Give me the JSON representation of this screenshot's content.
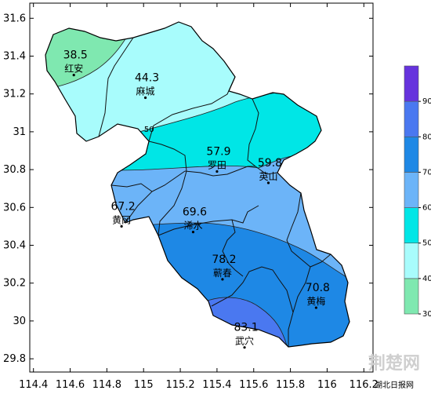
{
  "chart_data": {
    "type": "heatmap",
    "x_ticks": [
      "114.4",
      "114.6",
      "114.8",
      "115",
      "115.2",
      "115.4",
      "115.6",
      "115.8",
      "116",
      "116.2"
    ],
    "y_ticks": [
      "31.6",
      "31.4",
      "31.2",
      "31",
      "30.8",
      "30.6",
      "30.4",
      "30.2",
      "30",
      "29.8"
    ],
    "xlim": [
      114.38,
      116.25
    ],
    "ylim": [
      29.73,
      31.68
    ],
    "stations": [
      {
        "name": "红安",
        "value": "38.5",
        "lon": 114.62,
        "lat": 31.3
      },
      {
        "name": "麻城",
        "value": "44.3",
        "lon": 115.01,
        "lat": 31.18
      },
      {
        "name": "罗田",
        "value": "57.9",
        "lon": 115.4,
        "lat": 30.79
      },
      {
        "name": "英山",
        "value": "59.8",
        "lon": 115.68,
        "lat": 30.73
      },
      {
        "name": "黄冈",
        "value": "67.2",
        "lon": 114.88,
        "lat": 30.5
      },
      {
        "name": "浠水",
        "value": "69.6",
        "lon": 115.27,
        "lat": 30.47
      },
      {
        "name": "蕲春",
        "value": "78.2",
        "lon": 115.43,
        "lat": 30.22
      },
      {
        "name": "黄梅",
        "value": "70.8",
        "lon": 115.94,
        "lat": 30.07
      },
      {
        "name": "武穴",
        "value": "83.1",
        "lon": 115.55,
        "lat": 29.86
      }
    ],
    "contour_labels": [
      {
        "text": "50",
        "lon": 115.03,
        "lat": 31.0
      }
    ],
    "legend": {
      "ticks": [
        "30",
        "40",
        "50",
        "60",
        "70",
        "80",
        "90"
      ],
      "bins": [
        {
          "from": 30,
          "to": 40,
          "color": "#7fe8b0"
        },
        {
          "from": 40,
          "to": 50,
          "color": "#a8fcfc"
        },
        {
          "from": 50,
          "to": 60,
          "color": "#00e6e6"
        },
        {
          "from": 60,
          "to": 70,
          "color": "#6cb4f8"
        },
        {
          "from": 70,
          "to": 80,
          "color": "#1e88e5"
        },
        {
          "from": 80,
          "to": 90,
          "color": "#4a78f0"
        },
        {
          "from": 90,
          "to": 100,
          "color": "#6633dd"
        }
      ]
    }
  },
  "watermark": {
    "text": "荆楚网",
    "subtext": "湖北日报网"
  }
}
